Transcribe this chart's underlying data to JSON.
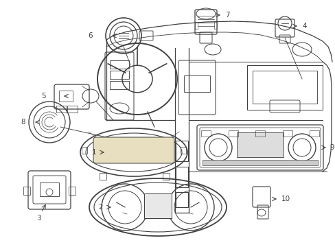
{
  "background_color": "#ffffff",
  "line_color": "#404040",
  "label_color": "#000000",
  "lw": 0.9
}
